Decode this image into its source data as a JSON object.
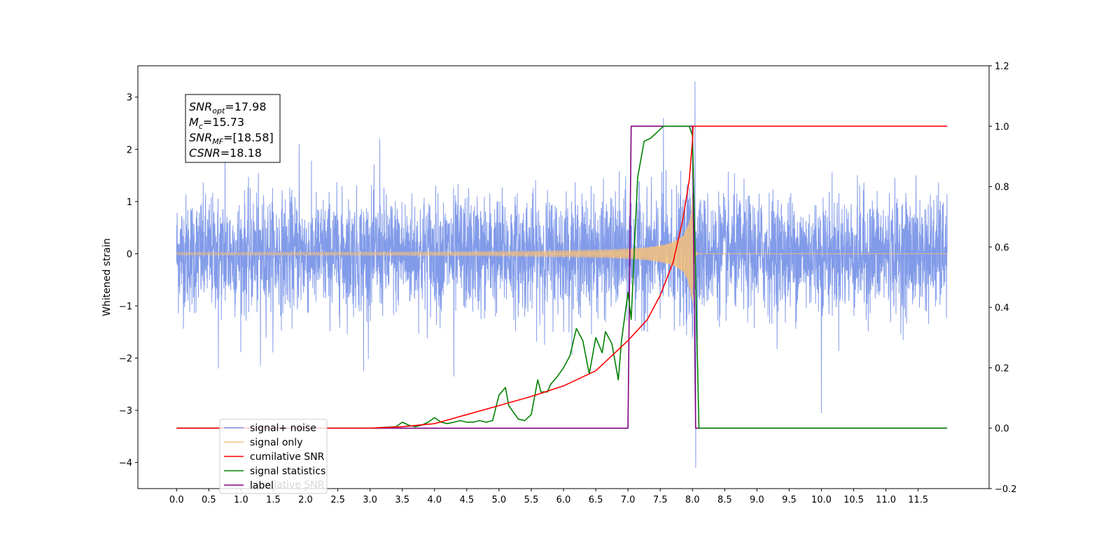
{
  "chart_data": {
    "type": "line",
    "ylabel": "Whitened strain",
    "left_axis": {
      "xlim": [
        -0.6,
        12.6
      ],
      "ylim": [
        -4.5,
        3.6
      ],
      "yticks": [
        -4,
        -3,
        -2,
        -1,
        0,
        1,
        2,
        3
      ],
      "ytick_labels": [
        "−4",
        "−3",
        "−2",
        "−1",
        "0",
        "1",
        "2",
        "3"
      ]
    },
    "right_axis": {
      "ylim": [
        -0.2,
        1.2
      ],
      "yticks": [
        -0.2,
        0.0,
        0.2,
        0.4,
        0.6,
        0.8,
        1.0,
        1.2
      ],
      "ytick_labels": [
        "−0.2",
        "0.0",
        "0.2",
        "0.4",
        "0.6",
        "0.8",
        "1.0",
        "1.2"
      ]
    },
    "xticks": [
      0,
      0.5,
      1,
      1.5,
      2,
      2.5,
      3,
      3.5,
      4,
      4.5,
      5,
      5.5,
      6,
      6.5,
      7,
      7.5,
      8,
      8.5,
      9,
      9.5,
      10,
      10.5,
      11,
      11.5
    ],
    "xtick_labels": [
      "0.0",
      "0.5",
      "1.0",
      "1.5",
      "2.0",
      "2.5",
      "3.0",
      "3.5",
      "4.0",
      "4.5",
      "5.0",
      "5.5",
      "6.0",
      "6.5",
      "7.0",
      "7.5",
      "8.0",
      "8.5",
      "9.0",
      "9.5",
      "10.0",
      "10.5",
      "11.0",
      "11.5"
    ],
    "noise": {
      "x_range": [
        0.0,
        11.95
      ],
      "typical_amplitude": 1.1,
      "spikes": [
        {
          "x": 0.65,
          "y": -2.2
        },
        {
          "x": 0.75,
          "y": 2.1
        },
        {
          "x": 1.3,
          "y": -2.15
        },
        {
          "x": 1.9,
          "y": 2.1
        },
        {
          "x": 2.9,
          "y": -2.25
        },
        {
          "x": 3.15,
          "y": 2.2
        },
        {
          "x": 4.3,
          "y": -2.35
        },
        {
          "x": 7.55,
          "y": 2.6
        },
        {
          "x": 8.04,
          "y": 3.3
        },
        {
          "x": 8.05,
          "y": -4.1
        },
        {
          "x": 10.0,
          "y": -3.05
        }
      ]
    },
    "chirp": {
      "t_start": 0.0,
      "t_merge": 8.0,
      "amp_end": 1.15
    },
    "series": [
      {
        "name": "signal+ noise",
        "color": "#7b96e8"
      },
      {
        "name": "signal only",
        "color": "#f5c07a"
      },
      {
        "name": "cumilative SNR",
        "color": "#ff0000",
        "x": [
          0.0,
          3.0,
          3.5,
          4.0,
          4.5,
          5.0,
          5.5,
          6.0,
          6.5,
          7.0,
          7.3,
          7.5,
          7.7,
          7.85,
          7.95,
          8.0,
          8.01,
          11.95
        ],
        "y": [
          0.0,
          0.0,
          0.005,
          0.015,
          0.045,
          0.075,
          0.105,
          0.14,
          0.19,
          0.29,
          0.36,
          0.44,
          0.55,
          0.69,
          0.82,
          0.95,
          1.0,
          1.0
        ]
      },
      {
        "name": "signal statistics",
        "color": "#008000",
        "x": [
          0.0,
          3.0,
          3.4,
          3.5,
          3.6,
          3.7,
          3.8,
          3.9,
          4.0,
          4.1,
          4.2,
          4.3,
          4.4,
          4.5,
          4.6,
          4.7,
          4.8,
          4.9,
          5.0,
          5.1,
          5.15,
          5.3,
          5.4,
          5.5,
          5.6,
          5.65,
          5.75,
          5.8,
          5.9,
          6.0,
          6.1,
          6.2,
          6.3,
          6.4,
          6.5,
          6.6,
          6.65,
          6.75,
          6.85,
          6.9,
          7.0,
          7.05,
          7.15,
          7.25,
          7.35,
          7.45,
          7.55,
          7.65,
          7.75,
          7.85,
          7.95,
          8.0,
          8.05,
          8.1,
          11.95
        ],
        "y": [
          0.0,
          0.0,
          0.005,
          0.02,
          0.01,
          0.005,
          0.01,
          0.02,
          0.035,
          0.02,
          0.015,
          0.02,
          0.025,
          0.02,
          0.02,
          0.025,
          0.02,
          0.025,
          0.11,
          0.135,
          0.075,
          0.03,
          0.025,
          0.045,
          0.16,
          0.12,
          0.12,
          0.145,
          0.17,
          0.2,
          0.24,
          0.33,
          0.29,
          0.18,
          0.3,
          0.25,
          0.32,
          0.28,
          0.16,
          0.29,
          0.45,
          0.36,
          0.83,
          0.95,
          0.96,
          0.98,
          1.0,
          1.0,
          1.0,
          1.0,
          1.0,
          0.97,
          0.5,
          0.0,
          0.0
        ]
      },
      {
        "name": "label",
        "color": "#800080",
        "x": [
          0.0,
          7.0,
          7.05,
          8.0,
          8.05,
          11.95
        ],
        "y": [
          0.0,
          0.0,
          1.0,
          1.0,
          0.0,
          0.0
        ]
      }
    ],
    "legend": {
      "position": "lower-left",
      "entries": [
        "signal+ noise",
        "signal only",
        "cumilative SNR",
        "signal statistics",
        "label"
      ],
      "overlapped_text": "cumilative SNR"
    },
    "annotation": {
      "lines": [
        {
          "sym": "SNR",
          "sub": "opt",
          "val": "=17.98"
        },
        {
          "sym": "M",
          "sub": "c",
          "val": "=15.73"
        },
        {
          "sym": "SNR",
          "sub": "MF",
          "val": "=[18.58]"
        },
        {
          "sym": "CSNR",
          "sub": "",
          "val": "=18.18"
        }
      ]
    }
  }
}
